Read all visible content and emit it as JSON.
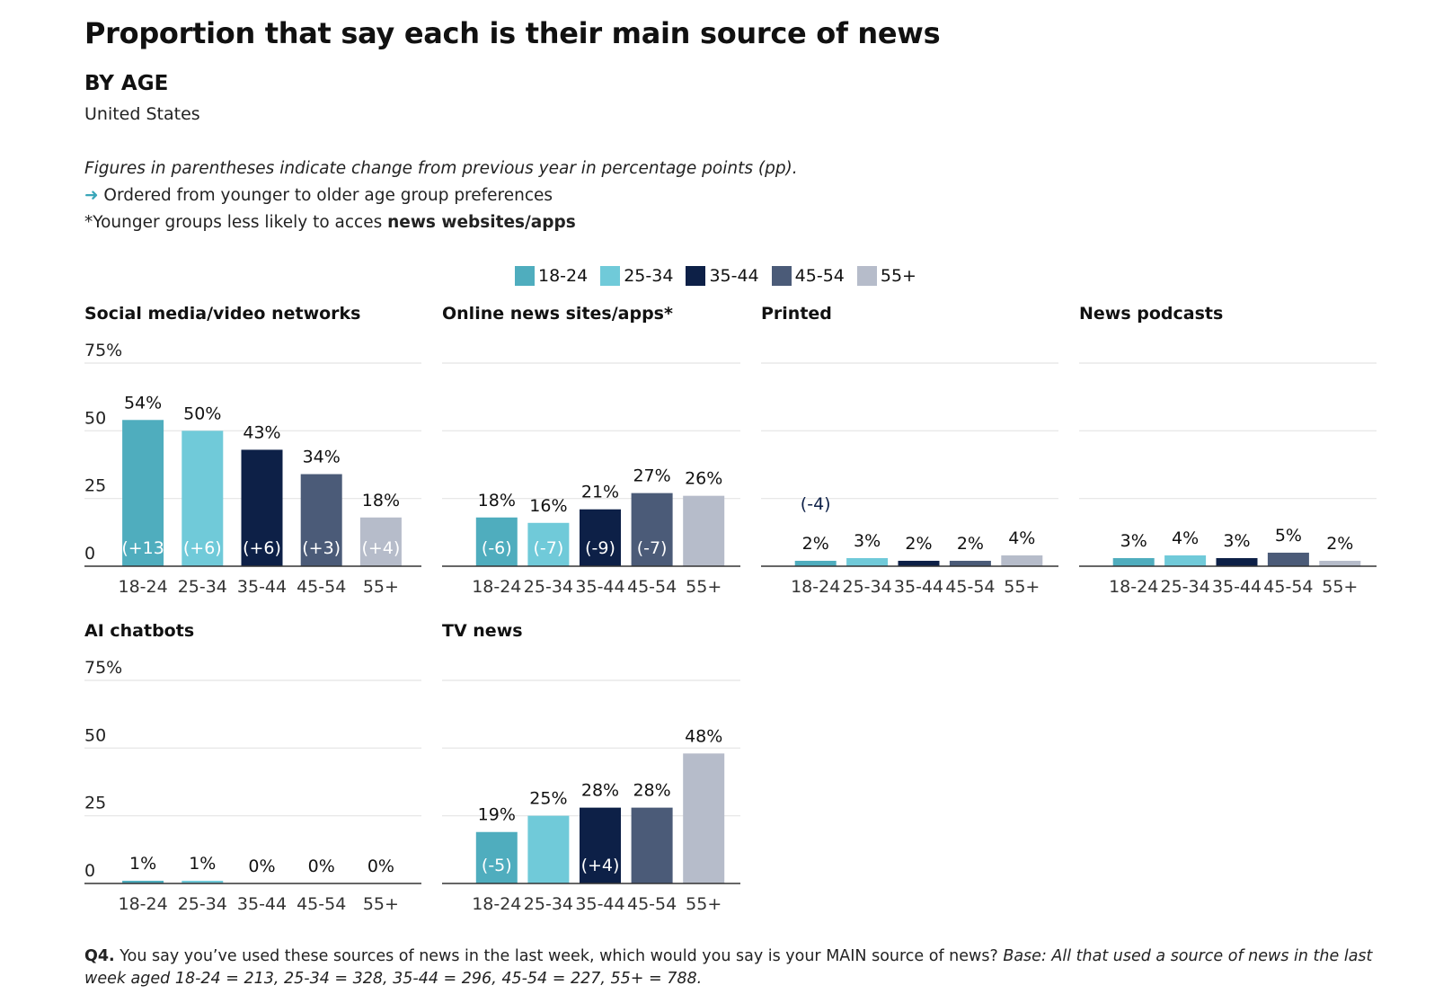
{
  "title": "Proportion that say each is their main source of news",
  "subtitle": "BY AGE",
  "country": "United States",
  "notes": {
    "change_note": "Figures in parentheses indicate change from previous year in percentage points (pp).",
    "arrow": "➜",
    "order_note": "Ordered from younger to older age group preferences",
    "younger_prefix": "*Younger groups less likely to acces ",
    "younger_bold": "news websites/apps"
  },
  "colors": {
    "18-24": "#4fadbe",
    "25-34": "#70cad9",
    "35-44": "#0d2047",
    "45-54": "#4b5b78",
    "55+": "#b6bcca"
  },
  "legend": [
    "18-24",
    "25-34",
    "35-44",
    "45-54",
    "55+"
  ],
  "chart_data": [
    {
      "type": "bar",
      "title": "Social media/video networks",
      "categories": [
        "18-24",
        "25-34",
        "35-44",
        "45-54",
        "55+"
      ],
      "values": [
        54,
        50,
        43,
        34,
        18
      ],
      "labels": [
        "54%",
        "50%",
        "43%",
        "34%",
        "18%"
      ],
      "changes": [
        "(+13",
        "(+6)",
        "(+6)",
        "(+3)",
        "(+4)"
      ],
      "yticks": [
        "0",
        "25",
        "50",
        "75%"
      ],
      "ylim": [
        0,
        75
      ]
    },
    {
      "type": "bar",
      "title": "Online news sites/apps*",
      "categories": [
        "18-24",
        "25-34",
        "35-44",
        "45-54",
        "55+"
      ],
      "values": [
        18,
        16,
        21,
        27,
        26
      ],
      "labels": [
        "18%",
        "16%",
        "21%",
        "27%",
        "26%"
      ],
      "changes": [
        "(-6)",
        "(-7)",
        "(-9)",
        "(-7)",
        ""
      ],
      "ylim": [
        0,
        75
      ]
    },
    {
      "type": "bar",
      "title": "Printed",
      "categories": [
        "18-24",
        "25-34",
        "35-44",
        "45-54",
        "55+"
      ],
      "values": [
        2,
        3,
        2,
        2,
        4
      ],
      "labels": [
        "2%",
        "3%",
        "2%",
        "2%",
        "4%"
      ],
      "changes": [
        "(-4)",
        "",
        "",
        "",
        ""
      ],
      "ylim": [
        0,
        75
      ]
    },
    {
      "type": "bar",
      "title": "News podcasts",
      "categories": [
        "18-24",
        "25-34",
        "35-44",
        "45-54",
        "55+"
      ],
      "values": [
        3,
        4,
        3,
        5,
        2
      ],
      "labels": [
        "3%",
        "4%",
        "3%",
        "5%",
        "2%"
      ],
      "changes": [
        "",
        "",
        "",
        "",
        ""
      ],
      "ylim": [
        0,
        75
      ]
    },
    {
      "type": "bar",
      "title": "AI chatbots",
      "categories": [
        "18-24",
        "25-34",
        "35-44",
        "45-54",
        "55+"
      ],
      "values": [
        1,
        1,
        0,
        0,
        0
      ],
      "labels": [
        "1%",
        "1%",
        "0%",
        "0%",
        "0%"
      ],
      "changes": [
        "",
        "",
        "",
        "",
        ""
      ],
      "yticks": [
        "0",
        "25",
        "50",
        "75%"
      ],
      "ylim": [
        0,
        75
      ]
    },
    {
      "type": "bar",
      "title": "TV news",
      "categories": [
        "18-24",
        "25-34",
        "35-44",
        "45-54",
        "55+"
      ],
      "values": [
        19,
        25,
        28,
        28,
        48
      ],
      "labels": [
        "19%",
        "25%",
        "28%",
        "28%",
        "48%"
      ],
      "changes": [
        "(-5)",
        "",
        "(+4)",
        "",
        ""
      ],
      "ylim": [
        0,
        75
      ]
    }
  ],
  "footer": {
    "q_label": "Q4.",
    "question": " You say you’ve used these sources of news in the last week, which would you say is your MAIN source of news? ",
    "base": "Base: All that used a source of news in the last week aged 18-24 = 213, 25-34 = 328, 35-44 = 296, 45-54 = 227, 55+ = 788."
  }
}
